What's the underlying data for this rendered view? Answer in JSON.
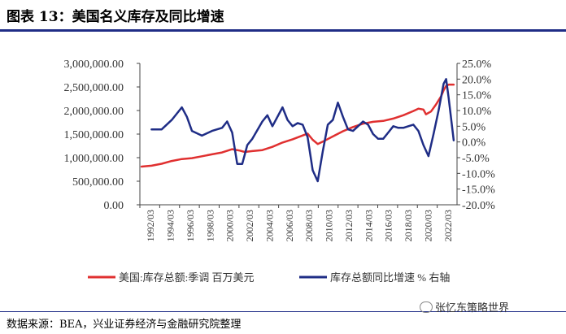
{
  "title": "图表 13：美国名义库存及同比增速",
  "source": "数据来源：BEA，兴业证券经济与金融研究院整理",
  "watermark": "张忆东策略世界",
  "colors": {
    "series_left": "#e03030",
    "series_right": "#1f2d86",
    "accent_rule": "#1f2d86"
  },
  "chart_data": {
    "type": "line",
    "x_tick_labels": [
      "1992/03",
      "1994/03",
      "1996/03",
      "1998/03",
      "2000/03",
      "2002/03",
      "2004/03",
      "2006/03",
      "2008/03",
      "2010/03",
      "2012/03",
      "2014/03",
      "2016/03",
      "2018/03",
      "2020/03",
      "2022/03"
    ],
    "y_left_tick_labels": [
      "0.00",
      "500,000.00",
      "1,000,000.00",
      "1,500,000.00",
      "2,000,000.00",
      "2,500,000.00",
      "3,000,000.00"
    ],
    "y_right_tick_labels": [
      "-20.0%",
      "-15.0%",
      "-10.0%",
      "-5.0%",
      "0.0%",
      "5.0%",
      "10.0%",
      "15.0%",
      "20.0%",
      "25.0%"
    ],
    "ylim_left": [
      0,
      3000000
    ],
    "ylim_right": [
      -20,
      25
    ],
    "grid": false,
    "legend_position": "bottom",
    "series": [
      {
        "name": "美国:库存总额:季调 百万美元",
        "axis": "left",
        "x": [
          "1992/03",
          "1993/03",
          "1994/03",
          "1995/03",
          "1996/03",
          "1997/03",
          "1998/03",
          "1999/03",
          "2000/03",
          "2001/03",
          "2001/12",
          "2002/06",
          "2003/03",
          "2004/03",
          "2005/03",
          "2006/03",
          "2007/03",
          "2008/03",
          "2008/09",
          "2009/03",
          "2009/09",
          "2010/03",
          "2011/03",
          "2012/03",
          "2013/03",
          "2014/03",
          "2015/03",
          "2016/03",
          "2017/03",
          "2018/03",
          "2019/03",
          "2019/09",
          "2020/03",
          "2020/06",
          "2020/12",
          "2021/06",
          "2021/12",
          "2022/03",
          "2022/06",
          "2022/09",
          "2023/03"
        ],
        "values": [
          810000,
          830000,
          870000,
          930000,
          970000,
          990000,
          1030000,
          1070000,
          1110000,
          1180000,
          1150000,
          1120000,
          1140000,
          1160000,
          1230000,
          1320000,
          1390000,
          1470000,
          1510000,
          1380000,
          1290000,
          1340000,
          1450000,
          1560000,
          1650000,
          1720000,
          1760000,
          1780000,
          1830000,
          1900000,
          1990000,
          2040000,
          2020000,
          1920000,
          1980000,
          2130000,
          2300000,
          2430000,
          2520000,
          2550000,
          2550000
        ]
      },
      {
        "name": "库存总额同比增速 % 右轴",
        "axis": "right",
        "x": [
          "1993/03",
          "1994/03",
          "1995/03",
          "1996/03",
          "1996/09",
          "1997/03",
          "1998/03",
          "1999/03",
          "2000/03",
          "2000/09",
          "2001/03",
          "2001/09",
          "2002/03",
          "2002/09",
          "2003/03",
          "2004/03",
          "2004/09",
          "2005/03",
          "2006/03",
          "2006/09",
          "2007/03",
          "2007/09",
          "2008/03",
          "2008/09",
          "2009/03",
          "2009/09",
          "2010/03",
          "2010/09",
          "2011/03",
          "2011/09",
          "2012/03",
          "2012/09",
          "2013/03",
          "2013/09",
          "2014/03",
          "2014/09",
          "2015/03",
          "2015/09",
          "2016/03",
          "2016/09",
          "2017/03",
          "2017/09",
          "2018/03",
          "2018/09",
          "2019/03",
          "2019/09",
          "2020/03",
          "2020/09",
          "2021/03",
          "2021/09",
          "2022/03",
          "2022/06",
          "2022/09",
          "2023/03"
        ],
        "values": [
          4.0,
          4.0,
          7.0,
          11.0,
          8.0,
          3.5,
          2.0,
          3.5,
          4.5,
          6.5,
          3.0,
          -7.0,
          -7.0,
          -1.0,
          1.0,
          6.5,
          8.5,
          5.0,
          11.0,
          7.0,
          5.0,
          6.0,
          5.5,
          1.5,
          -9.0,
          -12.5,
          -3.0,
          5.5,
          7.0,
          12.5,
          8.0,
          4.0,
          3.5,
          5.0,
          6.5,
          5.5,
          2.5,
          1.0,
          1.0,
          3.0,
          5.0,
          4.5,
          4.5,
          5.0,
          5.5,
          3.5,
          -1.0,
          -4.5,
          2.5,
          10.0,
          18.5,
          20.0,
          14.0,
          0.5
        ]
      }
    ]
  }
}
